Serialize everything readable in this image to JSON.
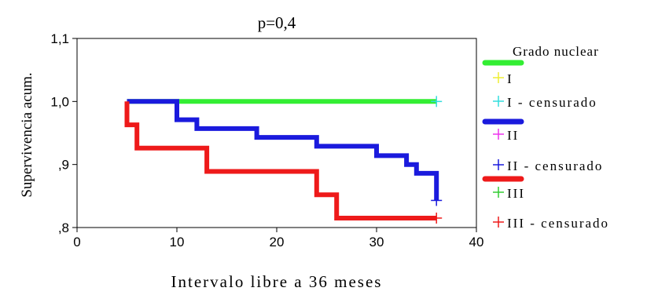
{
  "chart_data": {
    "type": "line",
    "title": "p=0,4",
    "xlabel": "Intervalo libre a 36 meses",
    "ylabel": "Supervivencia acum.",
    "xlim": [
      0,
      40
    ],
    "ylim": [
      0.8,
      1.1
    ],
    "x_ticks": [
      0,
      10,
      20,
      30,
      40
    ],
    "x_tick_labels": [
      "0",
      "10",
      "20",
      "30",
      "40"
    ],
    "y_ticks": [
      0.8,
      0.9,
      1.0,
      1.1
    ],
    "y_tick_labels": [
      ",8",
      ",9",
      "1,0",
      "1,1"
    ],
    "grid": false,
    "legend_title": "Grado nuclear",
    "legend_position": "right",
    "legend": [
      {
        "label": "I",
        "kind": "line",
        "color": "#33ee33"
      },
      {
        "label": "I",
        "kind": "censor",
        "color": "#eeee33"
      },
      {
        "label": "I - censurado",
        "kind": "censor",
        "color": "#33dddd"
      },
      {
        "label": "II",
        "kind": "line",
        "color": "#1a1add"
      },
      {
        "label": "II",
        "kind": "censor",
        "color": "#ee33ee"
      },
      {
        "label": "II - censurado",
        "kind": "censor",
        "color": "#1a1add"
      },
      {
        "label": "III",
        "kind": "line",
        "color": "#ee1a1a"
      },
      {
        "label": "III",
        "kind": "censor",
        "color": "#33cc33"
      },
      {
        "label": "III - censurado",
        "kind": "censor",
        "color": "#ee1a1a"
      }
    ],
    "series": [
      {
        "color": "#33ee33",
        "steps": [
          [
            5,
            1.0
          ],
          [
            36,
            1.0
          ]
        ],
        "censored": [
          {
            "x": 36,
            "y": 1.0,
            "color": "#33dddd"
          }
        ]
      },
      {
        "color": "#1a1add",
        "steps": [
          [
            5,
            1.0
          ],
          [
            10,
            1.0
          ],
          [
            10,
            0.971
          ],
          [
            12,
            0.971
          ],
          [
            12,
            0.957
          ],
          [
            18,
            0.957
          ],
          [
            18,
            0.943
          ],
          [
            24,
            0.943
          ],
          [
            24,
            0.929
          ],
          [
            30,
            0.929
          ],
          [
            30,
            0.914
          ],
          [
            33,
            0.914
          ],
          [
            33,
            0.9
          ],
          [
            34,
            0.9
          ],
          [
            34,
            0.886
          ],
          [
            36,
            0.886
          ],
          [
            36,
            0.843
          ]
        ],
        "censored": [
          {
            "x": 36,
            "y": 0.843,
            "color": "#1a1add"
          }
        ]
      },
      {
        "color": "#ee1a1a",
        "steps": [
          [
            5,
            1.0
          ],
          [
            5,
            0.963
          ],
          [
            6,
            0.963
          ],
          [
            6,
            0.926
          ],
          [
            13,
            0.926
          ],
          [
            13,
            0.889
          ],
          [
            24,
            0.889
          ],
          [
            24,
            0.852
          ],
          [
            26,
            0.852
          ],
          [
            26,
            0.815
          ],
          [
            36,
            0.815
          ]
        ],
        "censored": [
          {
            "x": 36,
            "y": 0.815,
            "color": "#ee1a1a"
          }
        ]
      }
    ]
  }
}
